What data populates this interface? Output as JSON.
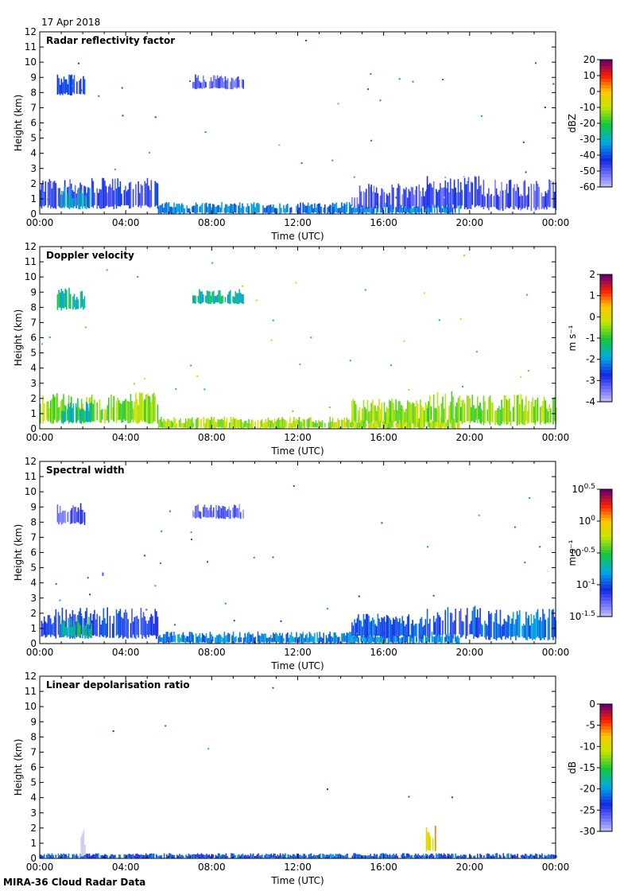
{
  "date": "17 Apr 2018",
  "footer": "MIRA-36 Cloud Radar Data",
  "chart_data": [
    {
      "type": "heatmap",
      "title": "Radar reflectivity factor",
      "xlabel": "Time (UTC)",
      "ylabel": "Height (km)",
      "xticks": [
        "00:00",
        "04:00",
        "08:00",
        "12:00",
        "16:00",
        "20:00",
        "00:00"
      ],
      "yticks": [
        "0",
        "1",
        "2",
        "3",
        "4",
        "5",
        "6",
        "7",
        "8",
        "9",
        "10",
        "11",
        "12"
      ],
      "ylim": [
        0,
        12
      ],
      "xlim_hours": [
        0,
        24
      ],
      "colorbar": {
        "label": "dBZ",
        "ticks": [
          "20",
          "10",
          "0",
          "-10",
          "-20",
          "-30",
          "-40",
          "-50",
          "-60"
        ],
        "range": [
          -60,
          20
        ],
        "scale": "rainbow"
      },
      "features": [
        {
          "t0": 0.0,
          "t1": 5.5,
          "h0": 0.3,
          "h1": 2.4,
          "value": -45
        },
        {
          "t0": 1.0,
          "t1": 2.4,
          "h0": 0.3,
          "h1": 1.8,
          "value": -30
        },
        {
          "t0": 5.5,
          "t1": 19.5,
          "h0": 0.0,
          "h1": 0.8,
          "value": -35
        },
        {
          "t0": 14.5,
          "t1": 18.0,
          "h0": 0.3,
          "h1": 2.0,
          "value": -48
        },
        {
          "t0": 18.0,
          "t1": 20.5,
          "h0": 0.3,
          "h1": 2.5,
          "value": -45
        },
        {
          "t0": 20.5,
          "t1": 24.0,
          "h0": 0.2,
          "h1": 2.3,
          "value": -48
        },
        {
          "t0": 0.8,
          "t1": 2.1,
          "h0": 7.8,
          "h1": 9.3,
          "value": -42
        },
        {
          "t0": 7.1,
          "t1": 9.5,
          "h0": 8.2,
          "h1": 9.2,
          "value": -48
        }
      ]
    },
    {
      "type": "heatmap",
      "title": "Doppler velocity",
      "xlabel": "Time (UTC)",
      "ylabel": "Height (km)",
      "xticks": [
        "00:00",
        "04:00",
        "08:00",
        "12:00",
        "16:00",
        "20:00",
        "00:00"
      ],
      "yticks": [
        "0",
        "1",
        "2",
        "3",
        "4",
        "5",
        "6",
        "7",
        "8",
        "9",
        "10",
        "11",
        "12"
      ],
      "ylim": [
        0,
        12
      ],
      "xlim_hours": [
        0,
        24
      ],
      "colorbar": {
        "label": "m s⁻¹",
        "ticks": [
          "2",
          "1",
          "0",
          "-1",
          "-2",
          "-3",
          "-4"
        ],
        "range": [
          -4,
          2
        ],
        "scale": "rainbow"
      },
      "features": [
        {
          "t0": 0.0,
          "t1": 5.5,
          "h0": 0.3,
          "h1": 2.4,
          "value": -0.5
        },
        {
          "t0": 1.0,
          "t1": 2.4,
          "h0": 0.3,
          "h1": 1.8,
          "value": -1.5
        },
        {
          "t0": 5.5,
          "t1": 19.5,
          "h0": 0.0,
          "h1": 0.8,
          "value": -0.3
        },
        {
          "t0": 14.5,
          "t1": 18.0,
          "h0": 0.3,
          "h1": 2.0,
          "value": -0.4
        },
        {
          "t0": 18.0,
          "t1": 20.5,
          "h0": 0.3,
          "h1": 2.5,
          "value": -0.6
        },
        {
          "t0": 20.5,
          "t1": 24.0,
          "h0": 0.2,
          "h1": 2.3,
          "value": -0.4
        },
        {
          "t0": 0.8,
          "t1": 2.1,
          "h0": 7.8,
          "h1": 9.3,
          "value": -1.5
        },
        {
          "t0": 7.1,
          "t1": 9.5,
          "h0": 8.2,
          "h1": 9.2,
          "value": -1.6
        }
      ]
    },
    {
      "type": "heatmap",
      "title": "Spectral width",
      "xlabel": "Time (UTC)",
      "ylabel": "Height (km)",
      "xticks": [
        "00:00",
        "04:00",
        "08:00",
        "12:00",
        "16:00",
        "20:00",
        "00:00"
      ],
      "yticks": [
        "0",
        "1",
        "2",
        "3",
        "4",
        "5",
        "6",
        "7",
        "8",
        "9",
        "10",
        "11",
        "12"
      ],
      "ylim": [
        0,
        12
      ],
      "xlim_hours": [
        0,
        24
      ],
      "colorbar": {
        "label": "m s⁻¹",
        "ticks": [
          "10^0.5",
          "10^0",
          "10^-0.5",
          "10^-1",
          "10^-1.5"
        ],
        "range": [
          -1.5,
          0.5
        ],
        "scale": "rainbow-log"
      },
      "features": [
        {
          "t0": 0.0,
          "t1": 5.5,
          "h0": 0.3,
          "h1": 2.4,
          "value": -1.05
        },
        {
          "t0": 1.0,
          "t1": 2.4,
          "h0": 0.3,
          "h1": 1.8,
          "value": -0.6
        },
        {
          "t0": 5.5,
          "t1": 19.5,
          "h0": 0.0,
          "h1": 0.8,
          "value": -0.85
        },
        {
          "t0": 14.5,
          "t1": 18.0,
          "h0": 0.3,
          "h1": 2.0,
          "value": -1.0
        },
        {
          "t0": 18.0,
          "t1": 20.5,
          "h0": 0.3,
          "h1": 2.5,
          "value": -1.05
        },
        {
          "t0": 20.5,
          "t1": 24.0,
          "h0": 0.2,
          "h1": 2.3,
          "value": -0.9
        },
        {
          "t0": 0.8,
          "t1": 2.1,
          "h0": 7.8,
          "h1": 9.3,
          "value": -1.2
        },
        {
          "t0": 7.1,
          "t1": 9.5,
          "h0": 8.2,
          "h1": 9.2,
          "value": -1.25
        }
      ]
    },
    {
      "type": "heatmap",
      "title": "Linear depolarisation ratio",
      "xlabel": "Time (UTC)",
      "ylabel": "Height (km)",
      "xticks": [
        "00:00",
        "04:00",
        "08:00",
        "12:00",
        "16:00",
        "20:00",
        "00:00"
      ],
      "yticks": [
        "0",
        "1",
        "2",
        "3",
        "4",
        "5",
        "6",
        "7",
        "8",
        "9",
        "10",
        "11",
        "12"
      ],
      "ylim": [
        0,
        12
      ],
      "xlim_hours": [
        0,
        24
      ],
      "colorbar": {
        "label": "dB",
        "ticks": [
          "0",
          "-5",
          "-10",
          "-15",
          "-20",
          "-25",
          "-30"
        ],
        "range": [
          -30,
          0
        ],
        "scale": "rainbow"
      },
      "features": [
        {
          "t0": 0.0,
          "t1": 24.0,
          "h0": 0.0,
          "h1": 0.35,
          "value": -22
        },
        {
          "t0": 1.9,
          "t1": 2.1,
          "h0": 0.0,
          "h1": 2.0,
          "value": -31
        },
        {
          "t0": 17.9,
          "t1": 18.4,
          "h0": 0.3,
          "h1": 2.3,
          "value": -8
        }
      ]
    }
  ]
}
